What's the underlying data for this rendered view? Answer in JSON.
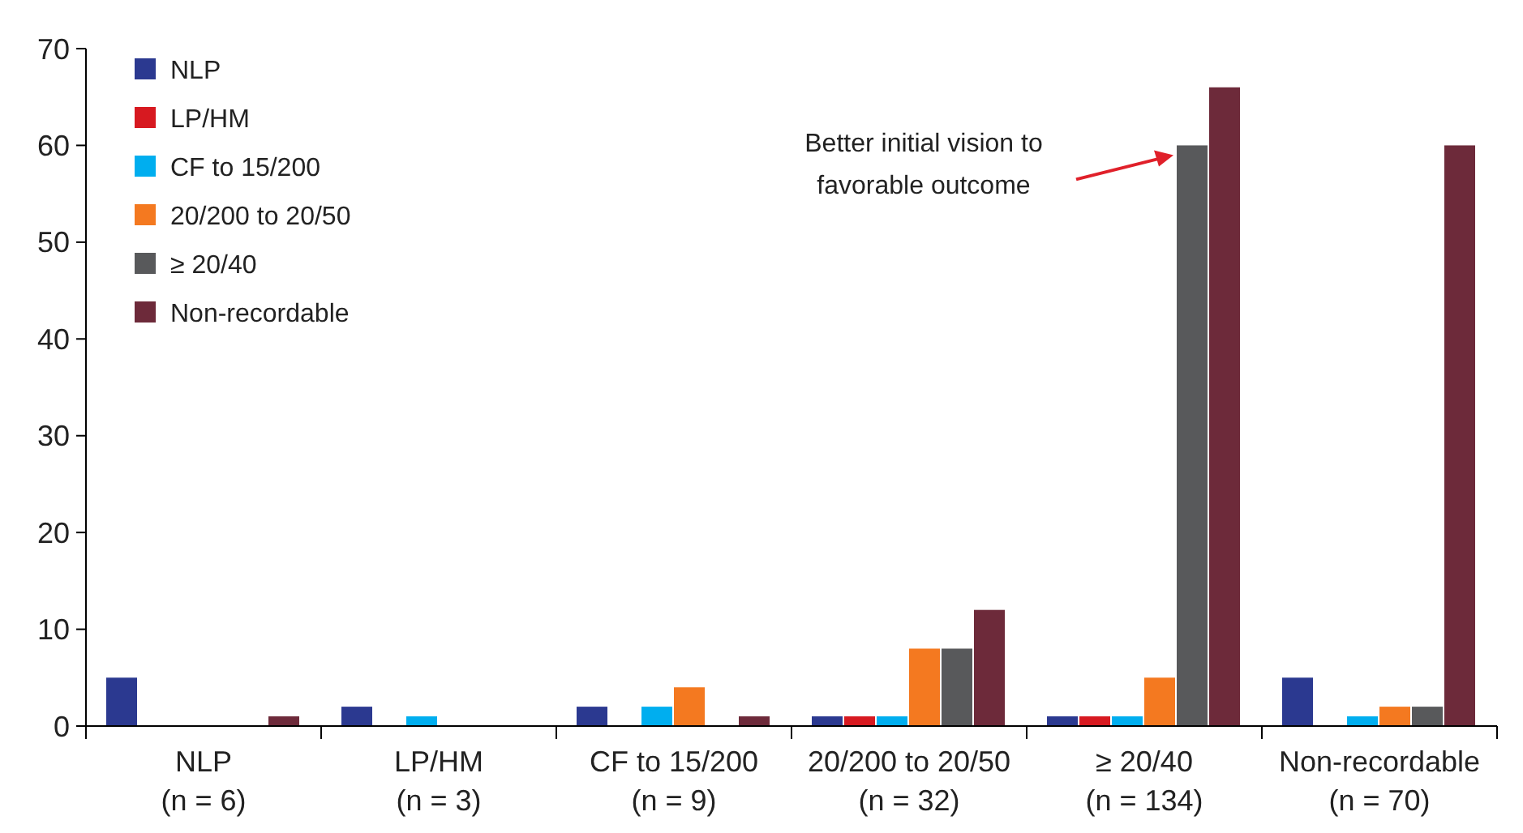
{
  "chart_data": {
    "type": "bar",
    "categories": [
      "NLP\n(n = 6)",
      "LP/HM\n(n = 3)",
      "CF to 15/200\n(n = 9)",
      "20/200 to 20/50\n(n = 32)",
      "≥ 20/40\n(n = 134)",
      "Non-recordable\n(n = 70)"
    ],
    "series": [
      {
        "name": "NLP",
        "color": "#2b3990",
        "values": [
          5,
          2,
          2,
          1,
          1,
          5
        ]
      },
      {
        "name": "LP/HM",
        "color": "#d71920",
        "values": [
          0,
          0,
          0,
          1,
          1,
          0
        ]
      },
      {
        "name": "CF to 15/200",
        "color": "#00aeef",
        "values": [
          0,
          1,
          2,
          1,
          1,
          1
        ]
      },
      {
        "name": "20/200 to 20/50",
        "color": "#f47920",
        "values": [
          0,
          0,
          4,
          8,
          5,
          2
        ]
      },
      {
        "name": "≥ 20/40",
        "color": "#58595b",
        "values": [
          0,
          0,
          0,
          8,
          60,
          2
        ]
      },
      {
        "name": "Non-recordable",
        "color": "#6d2a3a",
        "values": [
          1,
          0,
          1,
          12,
          66,
          60
        ]
      }
    ],
    "ylim": [
      0,
      70
    ],
    "yticks": [
      0,
      10,
      20,
      30,
      40,
      50,
      60,
      70
    ],
    "grid": false,
    "legend": "top left",
    "annotations": [
      "Better initial vision to\nfavorable outcome"
    ]
  }
}
